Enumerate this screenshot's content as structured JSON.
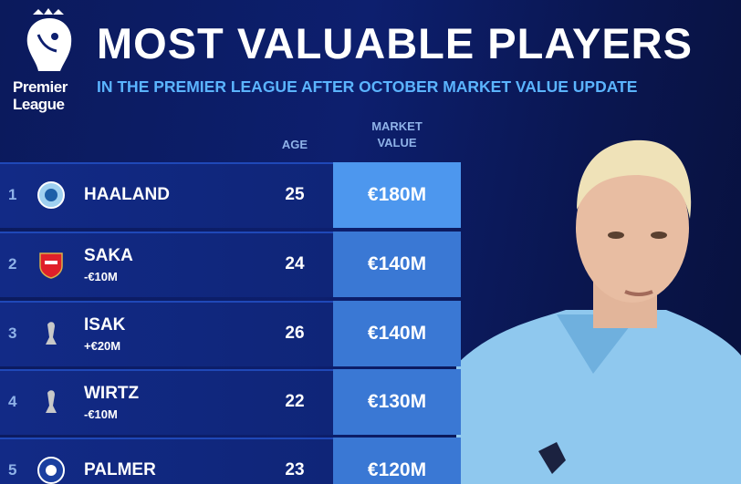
{
  "header": {
    "logo": "Premier League",
    "title": "MOST VALUABLE PLAYERS",
    "subtitle": "IN THE PREMIER LEAGUE AFTER OCTOBER MARKET VALUE UPDATE"
  },
  "table": {
    "columns": [
      "AGE",
      "MARKET VALUE"
    ],
    "rows": [
      {
        "rank": "1",
        "name": "HAALAND",
        "age": "25",
        "value": "€180M"
      },
      {
        "rank": "2",
        "name": "SAKA",
        "change": "-€10M",
        "age": "24",
        "value": "€140M"
      },
      {
        "rank": "3",
        "name": "ISAK",
        "change": "+€20M",
        "age": "26",
        "value": "€140M"
      },
      {
        "rank": "4",
        "name": "WIRTZ",
        "change": "-€10M",
        "age": "22",
        "value": "€130M"
      },
      {
        "rank": "5",
        "name": "PALMER",
        "age": "23",
        "value": "€120M"
      }
    ]
  }
}
